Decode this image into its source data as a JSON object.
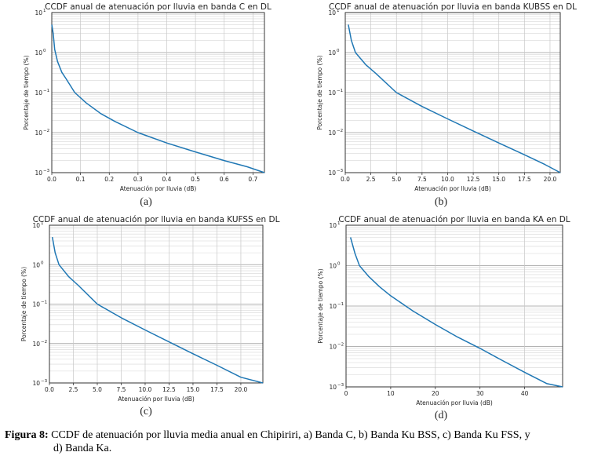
{
  "chart_data": [
    {
      "type": "line",
      "title": "CCDF anual de atenuación por lluvia en banda C en DL",
      "xlabel": "Atenuación por lluvia (dB)",
      "ylabel": "Porcentaje de tiempo (%)",
      "xlim": [
        0,
        0.74
      ],
      "ylim": [
        0.001,
        10
      ],
      "yscale": "log",
      "grid": true,
      "xticks": [
        0.0,
        0.1,
        0.2,
        0.3,
        0.4,
        0.5,
        0.6,
        0.7
      ],
      "xtick_labels": [
        "0.0",
        "0.1",
        "0.2",
        "0.3",
        "0.4",
        "0.5",
        "0.6",
        "0.7"
      ],
      "color": "#1f77b4",
      "x": [
        0.0,
        0.005,
        0.01,
        0.02,
        0.035,
        0.05,
        0.08,
        0.12,
        0.17,
        0.22,
        0.3,
        0.4,
        0.5,
        0.6,
        0.68,
        0.74
      ],
      "y": [
        5,
        3,
        1.2,
        0.6,
        0.32,
        0.22,
        0.1,
        0.055,
        0.03,
        0.019,
        0.01,
        0.0055,
        0.0033,
        0.002,
        0.0014,
        0.001
      ],
      "caption": "(a)"
    },
    {
      "type": "line",
      "title": "CCDF anual de atenuación por lluvia en banda KUBSS en DL",
      "xlabel": "Atenuación por lluvia (dB)",
      "ylabel": "Porcentaje de tiempo (%)",
      "xlim": [
        0,
        21
      ],
      "ylim": [
        0.001,
        10
      ],
      "yscale": "log",
      "grid": true,
      "xticks": [
        0.0,
        2.5,
        5.0,
        7.5,
        10.0,
        12.5,
        15.0,
        17.5,
        20.0
      ],
      "xtick_labels": [
        "0.0",
        "2.5",
        "5.0",
        "7.5",
        "10.0",
        "12.5",
        "15.0",
        "17.5",
        "20.0"
      ],
      "color": "#1f77b4",
      "x": [
        0.3,
        0.6,
        1.0,
        2.0,
        3.0,
        5.0,
        7.5,
        10.0,
        12.5,
        15.0,
        17.5,
        19.5,
        21.0
      ],
      "y": [
        5,
        2,
        1.0,
        0.5,
        0.3,
        0.1,
        0.045,
        0.022,
        0.011,
        0.0055,
        0.0028,
        0.0016,
        0.001
      ],
      "caption": "(b)"
    },
    {
      "type": "line",
      "title": "CCDF anual de atenuación por lluvia en banda KUFSS en DL",
      "xlabel": "Atenuación por lluvia (dB)",
      "ylabel": "Porcentaje de tiempo (%)",
      "xlim": [
        0,
        22.3
      ],
      "ylim": [
        0.001,
        10
      ],
      "yscale": "log",
      "grid": true,
      "xticks": [
        0.0,
        2.5,
        5.0,
        7.5,
        10.0,
        12.5,
        15.0,
        17.5,
        20.0
      ],
      "xtick_labels": [
        "0.0",
        "2.5",
        "5.0",
        "7.5",
        "10.0",
        "12.5",
        "15.0",
        "17.5",
        "20.0"
      ],
      "color": "#1f77b4",
      "x": [
        0.3,
        0.6,
        1.0,
        2.0,
        3.0,
        5.0,
        7.5,
        10.0,
        12.5,
        15.0,
        17.5,
        20.0,
        22.3
      ],
      "y": [
        5,
        2,
        1.0,
        0.5,
        0.3,
        0.1,
        0.045,
        0.022,
        0.011,
        0.0055,
        0.0028,
        0.0014,
        0.001
      ],
      "caption": "(c)"
    },
    {
      "type": "line",
      "title": "CCDF anual de atenuación por lluvia en banda KA en DL",
      "xlabel": "Atenuación por lluvia (dB)",
      "ylabel": "Porcentaje de tiempo (%)",
      "xlim": [
        0,
        48.5
      ],
      "ylim": [
        0.001,
        10
      ],
      "yscale": "log",
      "grid": true,
      "xticks": [
        0,
        10,
        20,
        30,
        40
      ],
      "xtick_labels": [
        "0",
        "10",
        "20",
        "30",
        "40"
      ],
      "color": "#1f77b4",
      "x": [
        1.0,
        2.0,
        3.0,
        5.0,
        7.5,
        10.0,
        15.0,
        20.0,
        25.0,
        30.0,
        35.0,
        40.0,
        45.0,
        48.5
      ],
      "y": [
        5,
        2,
        1.0,
        0.55,
        0.3,
        0.18,
        0.075,
        0.035,
        0.017,
        0.009,
        0.0045,
        0.0023,
        0.0012,
        0.001
      ],
      "caption": "(d)"
    }
  ],
  "figure_caption": {
    "label": "Figura 8:",
    "text_line1": "CCDF de atenuación por lluvia media anual en Chipiriri, a) Banda C, b) Banda Ku BSS, c) Banda Ku FSS, y",
    "text_line2": "d) Banda Ka."
  }
}
